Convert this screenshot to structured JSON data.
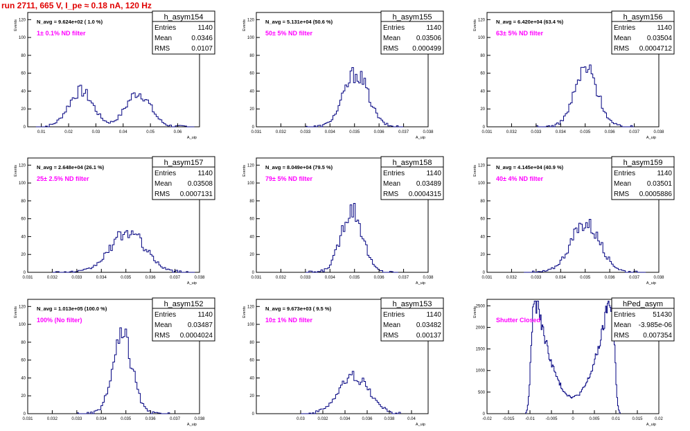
{
  "run_title": "run 2711,   665 V, I_pe ≈ 0.18 nA, 120 Hz",
  "chart_data": [
    {
      "type": "histogram",
      "name": "h_asym154",
      "navg": "N_avg = 9.624e+02 ( 1.0 %)",
      "filter": "1± 0.1% ND filter",
      "stats": {
        "Entries": "1140",
        "Mean": "0.0346",
        "RMS": "0.0107"
      },
      "xlabel": "A_uip",
      "ylabel": "Events",
      "xlim": [
        0.005,
        0.068
      ],
      "ylim": [
        0,
        128
      ],
      "xticks": [
        0.01,
        0.02,
        0.03,
        0.04,
        0.05,
        0.06
      ],
      "xtick_labels": [
        "0.01",
        "0.02",
        "0.03",
        "0.04",
        "0.05",
        "0.06"
      ],
      "yticks": [
        0,
        20,
        40,
        60,
        80,
        100,
        120
      ],
      "peaks": [
        {
          "mu": 0.0245,
          "sigma": 0.0045,
          "amp": 40
        },
        {
          "mu": 0.0455,
          "sigma": 0.0045,
          "amp": 38
        }
      ],
      "bin_width": 0.0007,
      "hist_range": [
        0.008,
        0.066
      ]
    },
    {
      "type": "histogram",
      "name": "h_asym155",
      "navg": "N_avg = 5.131e+04 (50.6 %)",
      "filter": "50± 5% ND filter",
      "stats": {
        "Entries": "1140",
        "Mean": "0.03506",
        "RMS": "0.000499"
      },
      "xlabel": "A_uip",
      "ylabel": "Events",
      "xlim": [
        0.031,
        0.038
      ],
      "ylim": [
        0,
        128
      ],
      "xticks": [
        0.031,
        0.032,
        0.033,
        0.034,
        0.035,
        0.036,
        0.037,
        0.038
      ],
      "xtick_labels": [
        "0.031",
        "0.032",
        "0.033",
        "0.034",
        "0.035",
        "0.036",
        "0.037",
        "0.038"
      ],
      "yticks": [
        0,
        20,
        40,
        60,
        80,
        100,
        120
      ],
      "peaks": [
        {
          "mu": 0.03506,
          "sigma": 0.0005,
          "amp": 60
        }
      ],
      "bin_width": 7e-05,
      "hist_range": [
        0.033,
        0.037
      ]
    },
    {
      "type": "histogram",
      "name": "h_asym156",
      "navg": "N_avg = 6.420e+04 (63.4 %)",
      "filter": "63± 5% ND filter",
      "stats": {
        "Entries": "1140",
        "Mean": "0.03504",
        "RMS": "0.0004712"
      },
      "xlabel": "A_uip",
      "ylabel": "Events",
      "xlim": [
        0.031,
        0.038
      ],
      "ylim": [
        0,
        128
      ],
      "xticks": [
        0.031,
        0.032,
        0.033,
        0.034,
        0.035,
        0.036,
        0.037,
        0.038
      ],
      "xtick_labels": [
        "0.031",
        "0.032",
        "0.033",
        "0.034",
        "0.035",
        "0.036",
        "0.037",
        "0.038"
      ],
      "yticks": [
        0,
        20,
        40,
        60,
        80,
        100,
        120
      ],
      "peaks": [
        {
          "mu": 0.03504,
          "sigma": 0.00047,
          "amp": 65
        }
      ],
      "bin_width": 7e-05,
      "hist_range": [
        0.033,
        0.037
      ]
    },
    {
      "type": "histogram",
      "name": "h_asym157",
      "navg": "N_avg = 2.648e+04 (26.1 %)",
      "filter": "25± 2.5% ND filter",
      "stats": {
        "Entries": "1140",
        "Mean": "0.03508",
        "RMS": "0.0007131"
      },
      "xlabel": "A_uip",
      "ylabel": "Events",
      "xlim": [
        0.031,
        0.038
      ],
      "ylim": [
        0,
        128
      ],
      "xticks": [
        0.031,
        0.032,
        0.033,
        0.034,
        0.035,
        0.036,
        0.037,
        0.038
      ],
      "xtick_labels": [
        "0.031",
        "0.032",
        "0.033",
        "0.034",
        "0.035",
        "0.036",
        "0.037",
        "0.038"
      ],
      "yticks": [
        0,
        20,
        40,
        60,
        80,
        100,
        120
      ],
      "peaks": [
        {
          "mu": 0.03508,
          "sigma": 0.00071,
          "amp": 45
        }
      ],
      "bin_width": 7e-05,
      "hist_range": [
        0.032,
        0.0378
      ]
    },
    {
      "type": "histogram",
      "name": "h_asym158",
      "navg": "N_avg = 8.049e+04 (79.5 %)",
      "filter": "79± 5% ND filter",
      "stats": {
        "Entries": "1140",
        "Mean": "0.03489",
        "RMS": "0.0004315"
      },
      "xlabel": "A_uip",
      "ylabel": "Events",
      "xlim": [
        0.031,
        0.038
      ],
      "ylim": [
        0,
        128
      ],
      "xticks": [
        0.031,
        0.032,
        0.033,
        0.034,
        0.035,
        0.036,
        0.037,
        0.038
      ],
      "xtick_labels": [
        "0.031",
        "0.032",
        "0.033",
        "0.034",
        "0.035",
        "0.036",
        "0.037",
        "0.038"
      ],
      "yticks": [
        0,
        20,
        40,
        60,
        80,
        100,
        120
      ],
      "peaks": [
        {
          "mu": 0.03489,
          "sigma": 0.00043,
          "amp": 72
        }
      ],
      "bin_width": 7e-05,
      "hist_range": [
        0.033,
        0.0368
      ]
    },
    {
      "type": "histogram",
      "name": "h_asym159",
      "navg": "N_avg = 4.145e+04 (40.9 %)",
      "filter": "40± 4% ND filter",
      "stats": {
        "Entries": "1140",
        "Mean": "0.03501",
        "RMS": "0.0005886"
      },
      "xlabel": "A_uip",
      "ylabel": "Events",
      "xlim": [
        0.031,
        0.038
      ],
      "ylim": [
        0,
        128
      ],
      "xticks": [
        0.031,
        0.032,
        0.033,
        0.034,
        0.035,
        0.036,
        0.037,
        0.038
      ],
      "xtick_labels": [
        "0.031",
        "0.032",
        "0.033",
        "0.034",
        "0.035",
        "0.036",
        "0.037",
        "0.038"
      ],
      "yticks": [
        0,
        20,
        40,
        60,
        80,
        100,
        120
      ],
      "peaks": [
        {
          "mu": 0.03501,
          "sigma": 0.00059,
          "amp": 55
        }
      ],
      "bin_width": 7e-05,
      "hist_range": [
        0.0325,
        0.0375
      ]
    },
    {
      "type": "histogram",
      "name": "h_asym152",
      "navg": "N_avg = 1.013e+05 (100.0 %)",
      "filter": "100% (No filter)",
      "stats": {
        "Entries": "1140",
        "Mean": "0.03487",
        "RMS": "0.0004024"
      },
      "xlabel": "A_uip",
      "ylabel": "Events",
      "xlim": [
        0.031,
        0.038
      ],
      "ylim": [
        0,
        128
      ],
      "xticks": [
        0.031,
        0.032,
        0.033,
        0.034,
        0.035,
        0.036,
        0.037,
        0.038
      ],
      "xtick_labels": [
        "0.031",
        "0.032",
        "0.033",
        "0.034",
        "0.035",
        "0.036",
        "0.037",
        "0.038"
      ],
      "yticks": [
        0,
        20,
        40,
        60,
        80,
        100,
        120
      ],
      "peaks": [
        {
          "mu": 0.03487,
          "sigma": 0.0004,
          "amp": 85
        }
      ],
      "bin_width": 7e-05,
      "hist_range": [
        0.033,
        0.0368
      ]
    },
    {
      "type": "histogram",
      "name": "h_asym153",
      "navg": "N_avg = 9.673e+03 ( 9.5 %)",
      "filter": "10± 1% ND filter",
      "stats": {
        "Entries": "1140",
        "Mean": "0.03482",
        "RMS": "0.00137"
      },
      "xlabel": "A_uip",
      "ylabel": "Events",
      "xlim": [
        0.026,
        0.0415
      ],
      "ylim": [
        0,
        128
      ],
      "xticks": [
        0.03,
        0.032,
        0.034,
        0.036,
        0.038,
        0.04
      ],
      "xtick_labels": [
        "0.03",
        "0.032",
        "0.034",
        "0.036",
        "0.038",
        "0.04"
      ],
      "yticks": [
        0,
        20,
        40,
        60,
        80,
        100,
        120
      ],
      "peaks": [
        {
          "mu": 0.03482,
          "sigma": 0.00137,
          "amp": 42
        }
      ],
      "bin_width": 0.00015,
      "hist_range": [
        0.03,
        0.039
      ]
    },
    {
      "type": "histogram",
      "name": "hPed_asym",
      "navg": "",
      "filter": "Shutter Closed",
      "stats": {
        "Entries": "51430",
        "Mean": "-3.985e-06",
        "RMS": "0.007354"
      },
      "xlabel": "A_uip",
      "ylabel": "Events",
      "xlim": [
        -0.02,
        0.02
      ],
      "ylim": [
        0,
        2650
      ],
      "xticks": [
        -0.02,
        -0.015,
        -0.01,
        -0.005,
        0,
        0.005,
        0.01,
        0.015,
        0.02
      ],
      "xtick_labels": [
        "-0.02",
        "-0.015",
        "-0.01",
        "-0.005",
        "0",
        "0.005",
        "0.01",
        "0.015",
        "0.02"
      ],
      "yticks": [
        0,
        500,
        1000,
        1500,
        2000,
        2500
      ],
      "pedestal": true,
      "bin_width": 0.0002,
      "hist_range": [
        -0.011,
        0.011
      ]
    }
  ]
}
